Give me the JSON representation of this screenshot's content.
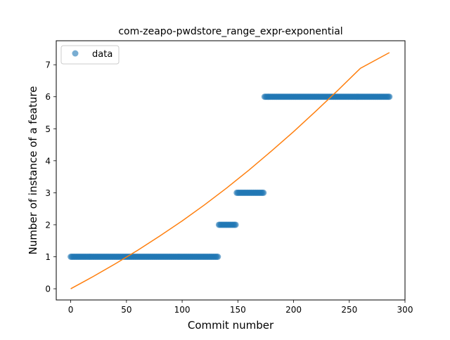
{
  "chart_data": {
    "type": "scatter",
    "title": "com-zeapo-pwdstore_range_expr-exponential",
    "xlabel": "Commit number",
    "ylabel": "Number of instance of a feature",
    "xlim": [
      -13,
      300
    ],
    "ylim": [
      -0.35,
      7.75
    ],
    "x_ticks": [
      0,
      50,
      100,
      150,
      200,
      250,
      300
    ],
    "y_ticks": [
      0,
      1,
      2,
      3,
      4,
      5,
      6,
      7
    ],
    "legend": {
      "position": "top-left",
      "label": "data"
    },
    "colors": {
      "data": "#1f77b4",
      "fit": "#ff7f0e"
    },
    "series": [
      {
        "name": "data",
        "kind": "scatter",
        "segments": [
          {
            "x_start": 0,
            "x_end": 132,
            "y": 1
          },
          {
            "x_start": 133,
            "x_end": 148,
            "y": 2
          },
          {
            "x_start": 149,
            "x_end": 173,
            "y": 3
          },
          {
            "x_start": 174,
            "x_end": 286,
            "y": 6
          }
        ]
      },
      {
        "kind": "line",
        "x": [
          0,
          20,
          40,
          60,
          80,
          100,
          120,
          140,
          160,
          180,
          200,
          220,
          240,
          260,
          286
        ],
        "y": [
          0.0,
          0.38,
          0.78,
          1.2,
          1.65,
          2.12,
          2.62,
          3.15,
          3.71,
          4.3,
          4.91,
          5.55,
          6.21,
          6.89,
          7.38
        ]
      }
    ]
  }
}
